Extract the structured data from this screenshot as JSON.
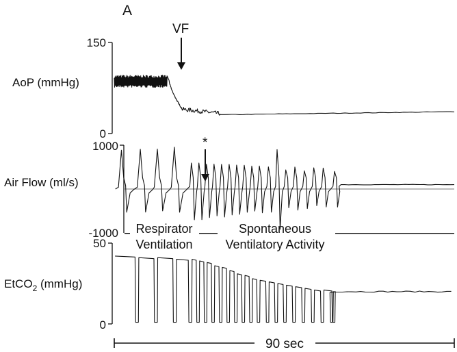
{
  "panel_label": "A",
  "chart_data": {
    "type": "line",
    "x_span": "90 sec",
    "time_range_sec": [
      0,
      90
    ],
    "traces": [
      {
        "key": "aop",
        "ylabel": "AoP (mmHg)",
        "ylim": [
          0,
          150
        ],
        "ticks": [
          "150",
          "0"
        ],
        "segments": [
          {
            "t": [
              0,
              14
            ],
            "shape": "pulsatile",
            "mean": 86,
            "amplitude": 10
          },
          {
            "t": [
              14.5,
              18
            ],
            "shape": "drop",
            "from": 88,
            "to": 40
          },
          {
            "t": [
              18,
              28
            ],
            "shape": "noisy-decline",
            "from": 40,
            "to": 33
          },
          {
            "t": [
              28,
              90
            ],
            "shape": "flat",
            "from": 31,
            "to": 36
          }
        ]
      },
      {
        "key": "airflow",
        "ylabel": "Air Flow (ml/s)",
        "ylim": [
          -1000,
          1000
        ],
        "ticks": [
          "1000",
          "-1000"
        ],
        "baseline": 0,
        "respirator_breaths_t": [
          2,
          7,
          11.5,
          16
        ],
        "spontaneous_breaths_t": [
          20.6,
          22.6,
          24.6,
          26.6,
          28.6,
          30.6,
          32.6,
          34.6,
          36.6,
          38.6,
          41,
          43.3,
          45.6,
          48,
          50.5,
          53,
          55.5,
          58.5
        ],
        "flat_after_t": 60,
        "flat_level": 100
      },
      {
        "key": "etco2",
        "ylabel": "EtCO",
        "ylabel_sub": "2",
        "ylabel_unit": " (mmHg)",
        "ylim": [
          0,
          50
        ],
        "ticks": [
          "50",
          "0"
        ],
        "plateau_levels": [
          42,
          41,
          41,
          40,
          40,
          39,
          38,
          36,
          35,
          33,
          31,
          30,
          28,
          27,
          26,
          25,
          24,
          23,
          22,
          21,
          21,
          20
        ],
        "trough_level": 1,
        "final_level": 20,
        "final_from_t": 58
      }
    ]
  },
  "annotations": {
    "vf": "VF",
    "asterisk": "*",
    "respirator": [
      "Respirator",
      "Ventilation"
    ],
    "spontaneous": [
      "Spontaneous",
      "Ventilatory Activity"
    ]
  }
}
